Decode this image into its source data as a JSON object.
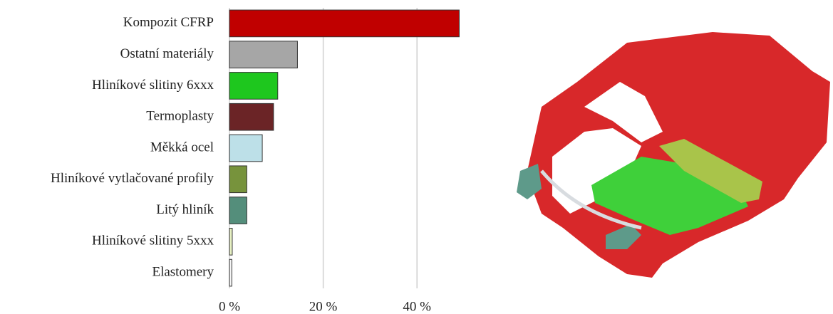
{
  "chart_data": {
    "type": "bar",
    "orientation": "horizontal",
    "categories": [
      "Kompozit CFRP",
      "Ostatní materiály",
      "Hliníkové slitiny 6xxx",
      "Termoplasty",
      "Měkká ocel",
      "Hliníkové vytlačované profily",
      "Litý hliník",
      "Hliníkové slitiny 5xxx",
      "Elastomery"
    ],
    "values": [
      49,
      14.5,
      10.3,
      9.4,
      7,
      3.7,
      3.7,
      0.6,
      0.5
    ],
    "colors": [
      "#c00000",
      "#a6a6a6",
      "#1ec71e",
      "#6b2426",
      "#bde0e8",
      "#77933c",
      "#548e7b",
      "#e8f2c4",
      "#f8f8f8"
    ],
    "xlim": [
      0,
      50
    ],
    "xticks": [
      {
        "value": 0,
        "label": "0 %"
      },
      {
        "value": 20,
        "label": "20 %"
      },
      {
        "value": 40,
        "label": "40 %"
      }
    ],
    "grid": true
  }
}
